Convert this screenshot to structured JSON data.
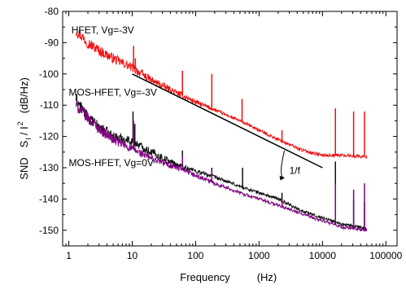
{
  "chart_data": {
    "type": "line",
    "xscale": "log",
    "xlim": [
      0.8,
      150000
    ],
    "ylim": [
      -155,
      -80
    ],
    "grid": false,
    "xticks": [
      1,
      10,
      100,
      1000,
      10000,
      100000
    ],
    "xtick_labels": [
      "1",
      "10",
      "100",
      "1000",
      "10000",
      "100000"
    ],
    "yticks": [
      -150,
      -140,
      -130,
      -120,
      -110,
      -100,
      -90,
      -80
    ],
    "ytick_labels": [
      "-150",
      "-140",
      "-130",
      "-120",
      "-110",
      "-100",
      "-90",
      "-80"
    ],
    "xlabel_parts": [
      "Frequency",
      "(Hz)"
    ],
    "ylabel_parts": [
      "SND",
      "S",
      "I",
      "/ I",
      "2",
      "(dB/Hz)"
    ],
    "series": [
      {
        "name": "HFET, Vg=-3V",
        "color": "#ee1111",
        "points": [
          [
            1.3,
            -86
          ],
          [
            2,
            -90
          ],
          [
            3,
            -92.5
          ],
          [
            5,
            -95
          ],
          [
            7,
            -96.5
          ],
          [
            10,
            -98
          ],
          [
            20,
            -102
          ],
          [
            50,
            -106
          ],
          [
            100,
            -109
          ],
          [
            200,
            -111.5
          ],
          [
            500,
            -115
          ],
          [
            1000,
            -118
          ],
          [
            2000,
            -121
          ],
          [
            5000,
            -124.5
          ],
          [
            10000,
            -126
          ],
          [
            20000,
            -126
          ],
          [
            50000,
            -126.5
          ]
        ],
        "spikes": [
          [
            10.5,
            -91
          ],
          [
            11.2,
            -95
          ],
          [
            62,
            -99
          ],
          [
            180,
            -100
          ],
          [
            540,
            -108
          ],
          [
            2300,
            -118
          ],
          [
            16000,
            -111
          ],
          [
            31000,
            -112
          ],
          [
            46000,
            -112
          ]
        ]
      },
      {
        "name": "MOS-HFET, Vg=-3V",
        "color": "#111111",
        "points": [
          [
            1.3,
            -108
          ],
          [
            2,
            -114
          ],
          [
            3,
            -117
          ],
          [
            5,
            -120
          ],
          [
            10,
            -121.5
          ],
          [
            20,
            -125
          ],
          [
            50,
            -129
          ],
          [
            100,
            -131
          ],
          [
            200,
            -133
          ],
          [
            500,
            -136
          ],
          [
            1000,
            -138
          ],
          [
            2000,
            -140
          ],
          [
            5000,
            -144
          ],
          [
            10000,
            -146
          ],
          [
            20000,
            -148
          ],
          [
            50000,
            -149.5
          ]
        ],
        "spikes": [
          [
            10.3,
            -112
          ],
          [
            11,
            -116
          ],
          [
            22,
            -124
          ],
          [
            62,
            -124.5
          ],
          [
            180,
            -130
          ],
          [
            550,
            -130
          ],
          [
            2300,
            -138
          ],
          [
            16000,
            -128
          ],
          [
            31000,
            -140
          ],
          [
            46000,
            -141
          ]
        ]
      },
      {
        "name": "MOS-HFET, Vg=0V",
        "color": "#800080",
        "points": [
          [
            1.3,
            -110
          ],
          [
            2,
            -114
          ],
          [
            3,
            -117.5
          ],
          [
            5,
            -121
          ],
          [
            10,
            -124
          ],
          [
            20,
            -127
          ],
          [
            50,
            -130
          ],
          [
            100,
            -132.5
          ],
          [
            200,
            -135
          ],
          [
            500,
            -138
          ],
          [
            1000,
            -140
          ],
          [
            2000,
            -142
          ],
          [
            5000,
            -145
          ],
          [
            10000,
            -147
          ],
          [
            20000,
            -149
          ],
          [
            50000,
            -150
          ]
        ],
        "spikes": [
          [
            10.5,
            -115
          ],
          [
            62,
            -126
          ],
          [
            180,
            -131
          ],
          [
            2300,
            -140
          ],
          [
            16000,
            -135
          ],
          [
            31000,
            -137
          ],
          [
            46000,
            -135
          ]
        ]
      }
    ],
    "annotations": [
      {
        "text": "HFET, Vg=-3V",
        "x": 1.1,
        "y": -87
      },
      {
        "text": "MOS-HFET, Vg=-3V",
        "x": 1.0,
        "y": -107
      },
      {
        "text": "MOS-HFET, Vg=0V",
        "x": 1.0,
        "y": -129.5
      },
      {
        "text": "1/f",
        "x": 3000,
        "y": -132
      }
    ],
    "reference_line": {
      "label": "1/f",
      "from": [
        10,
        -100
      ],
      "to": [
        10000,
        -130
      ]
    }
  }
}
